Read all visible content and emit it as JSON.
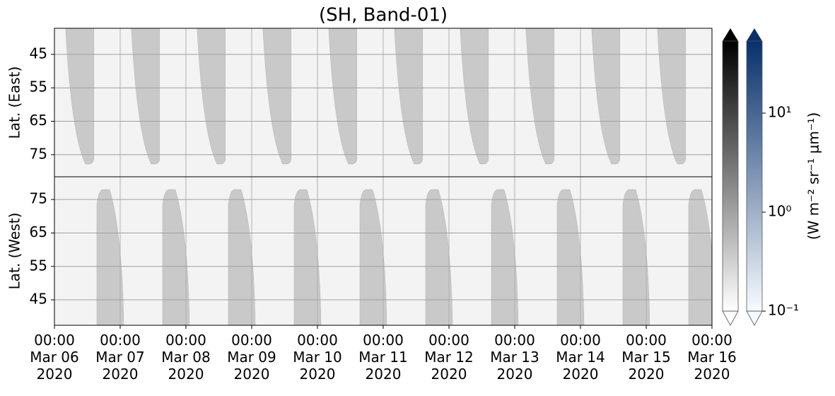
{
  "chart_data": [
    {
      "type": "heatmap",
      "title": "(SH, Band-01)",
      "ylabel": "Lat. (East)",
      "ylim": [
        37.2,
        81.6
      ],
      "y_inverted": true,
      "yticks": [
        45,
        55,
        65,
        75
      ],
      "xlim": [
        "2020-03-06T00:00",
        "2020-03-16T00:00"
      ],
      "xticks": [
        "2020-03-06T00:00",
        "2020-03-07T00:00",
        "2020-03-08T00:00",
        "2020-03-09T00:00",
        "2020-03-10T00:00",
        "2020-03-11T00:00",
        "2020-03-12T00:00",
        "2020-03-13T00:00",
        "2020-03-14T00:00",
        "2020-03-15T00:00",
        "2020-03-16T00:00"
      ],
      "grid": true,
      "swath_color": "#c9c9c9",
      "background": "#f3f3f3"
    },
    {
      "type": "heatmap",
      "ylabel": "Lat. (West)",
      "ylim": [
        37.4,
        81.8
      ],
      "y_inverted": false,
      "yticks": [
        45,
        55,
        65,
        75
      ],
      "xlim": [
        "2020-03-06T00:00",
        "2020-03-16T00:00"
      ],
      "xticks": [
        {
          "value": "2020-03-06T00:00",
          "label": "00:00\nMar 06\n2020"
        },
        {
          "value": "2020-03-07T00:00",
          "label": "00:00\nMar 07\n2020"
        },
        {
          "value": "2020-03-08T00:00",
          "label": "00:00\nMar 08\n2020"
        },
        {
          "value": "2020-03-09T00:00",
          "label": "00:00\nMar 09\n2020"
        },
        {
          "value": "2020-03-10T00:00",
          "label": "00:00\nMar 10\n2020"
        },
        {
          "value": "2020-03-11T00:00",
          "label": "00:00\nMar 11\n2020"
        },
        {
          "value": "2020-03-12T00:00",
          "label": "00:00\nMar 12\n2020"
        },
        {
          "value": "2020-03-13T00:00",
          "label": "00:00\nMar 13\n2020"
        },
        {
          "value": "2020-03-14T00:00",
          "label": "00:00\nMar 14\n2020"
        },
        {
          "value": "2020-03-15T00:00",
          "label": "00:00\nMar 15\n2020"
        },
        {
          "value": "2020-03-16T00:00",
          "label": "00:00\nMar 16\n2020"
        }
      ],
      "grid": true,
      "swath_color": "#c9c9c9",
      "background": "#f3f3f3"
    },
    {
      "type": "colorbar",
      "label": "(W m⁻² sr⁻¹ μm⁻¹)",
      "log_scale": true,
      "clim": [
        0.1,
        53.5
      ],
      "ticks": [
        {
          "value": 0.1,
          "label": "10⁻¹"
        },
        {
          "value": 1,
          "label": "10⁰"
        },
        {
          "value": 10,
          "label": "10¹"
        }
      ],
      "colormaps": [
        [
          "#ffffff",
          "#000000"
        ],
        [
          "#f7fbff",
          "#08306b"
        ]
      ]
    }
  ]
}
